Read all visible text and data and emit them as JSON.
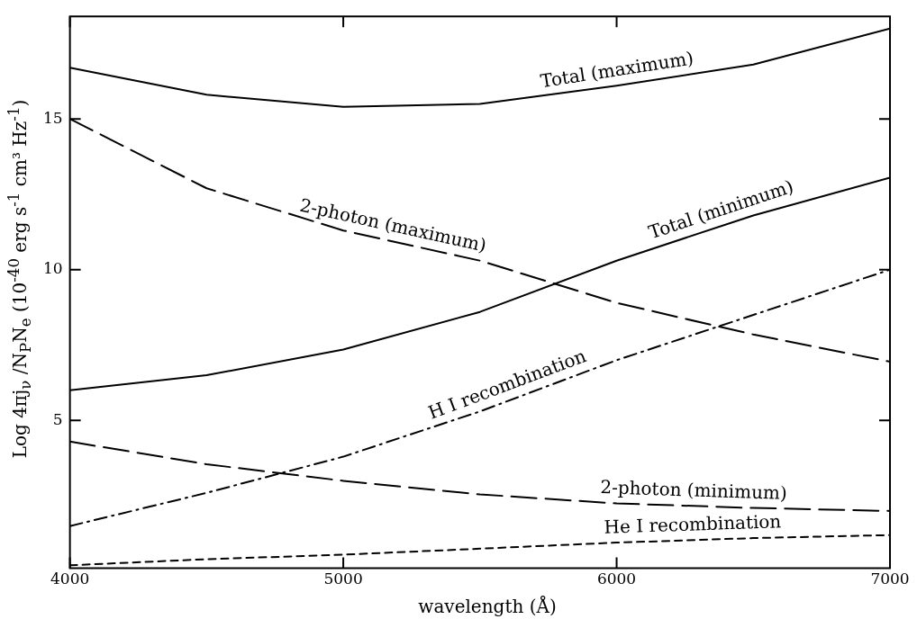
{
  "chart_data": {
    "type": "line",
    "xlabel": "wavelength (Å)",
    "ylabel": "Log 4πj$_{ν}$ /N$_{P}$N$_{e}$ (10$^{-40}$ erg s$^{-1}$ cm³ Hz$^{-1}$)",
    "x": [
      4000,
      4500,
      5000,
      5500,
      6000,
      6500,
      7000
    ],
    "xlim": [
      4000,
      7000
    ],
    "xticks": [
      4000,
      5000,
      6000,
      7000
    ],
    "ylim": [
      0.1,
      18.4
    ],
    "yticks": [
      5,
      10,
      15
    ],
    "grid": false,
    "marker": "none",
    "series": [
      {
        "name": "Total (maximum)",
        "color": "#000000",
        "line_style": "solid",
        "values": [
          16.7,
          15.8,
          15.4,
          15.5,
          16.1,
          16.8,
          18.0
        ]
      },
      {
        "name": "2-photon (maximum)",
        "color": "#000000",
        "line_style": "dashed",
        "values": [
          15.0,
          12.7,
          11.3,
          10.3,
          8.9,
          7.85,
          6.95
        ]
      },
      {
        "name": "Total (minimum)",
        "color": "#000000",
        "line_style": "solid",
        "values": [
          6.0,
          6.5,
          7.35,
          8.6,
          10.3,
          11.8,
          13.05
        ]
      },
      {
        "name": "H I recombination",
        "color": "#000000",
        "line_style": "dashdot",
        "values": [
          1.5,
          2.6,
          3.8,
          5.3,
          7.0,
          8.5,
          10.0
        ]
      },
      {
        "name": "2-photon (minimum)",
        "color": "#000000",
        "line_style": "dashed",
        "values": [
          4.3,
          3.55,
          3.0,
          2.55,
          2.25,
          2.1,
          2.0
        ]
      },
      {
        "name": "He I recombination",
        "color": "#000000",
        "line_style": "shortdash",
        "values": [
          0.2,
          0.4,
          0.55,
          0.75,
          0.95,
          1.1,
          1.2
        ]
      }
    ]
  }
}
